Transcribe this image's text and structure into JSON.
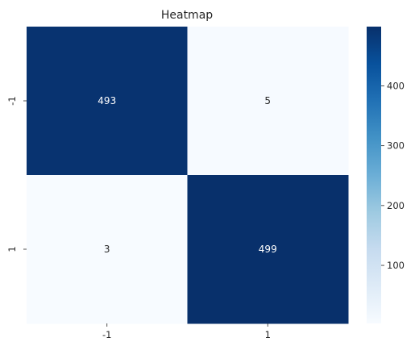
{
  "chart_data": {
    "type": "heatmap",
    "title": "Heatmap",
    "x_categories": [
      "-1",
      "1"
    ],
    "y_categories": [
      "-1",
      "1"
    ],
    "values": [
      [
        493,
        5
      ],
      [
        3,
        499
      ]
    ],
    "annotations": true,
    "colormap": "Blues",
    "color_range": [
      3,
      499
    ],
    "colorbar_ticks": [
      100,
      200,
      300,
      400
    ],
    "grid": false
  }
}
